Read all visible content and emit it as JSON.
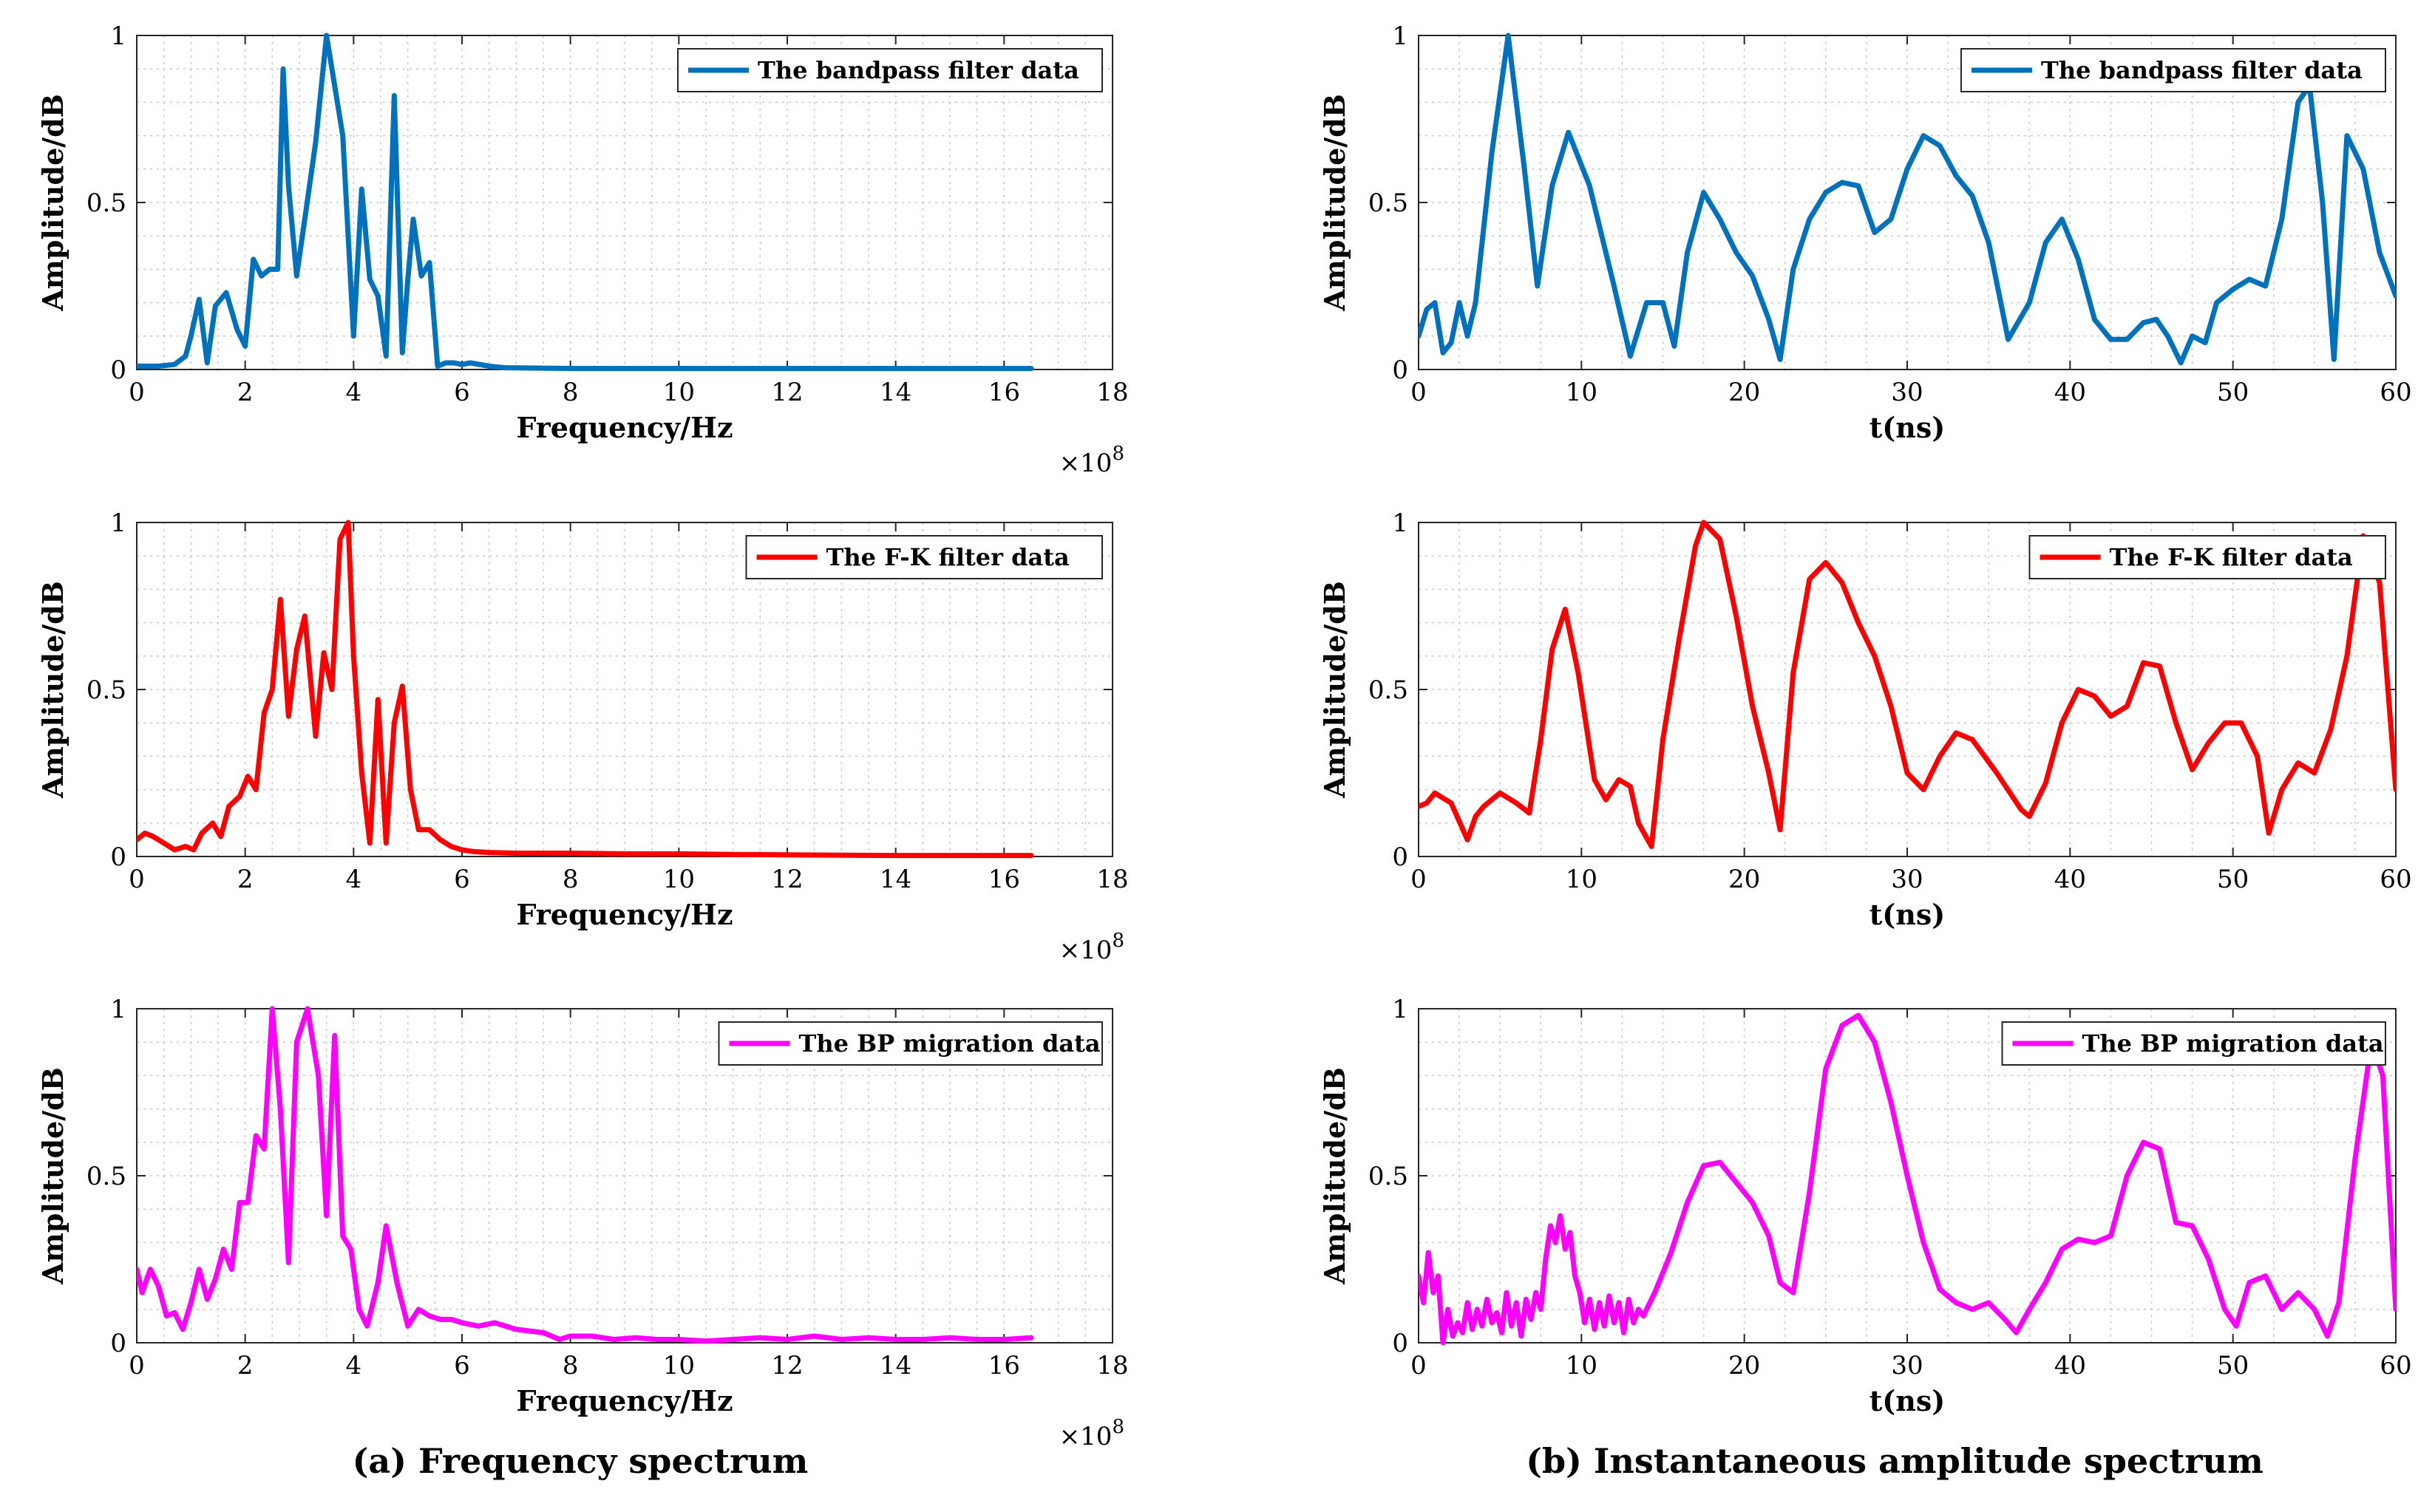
{
  "captions": {
    "left": "(a) Frequency spectrum",
    "right": "(b) Instantaneous amplitude spectrum"
  },
  "chart_data": [
    {
      "id": "freq-bandpass",
      "type": "line",
      "panel": "left-row-1",
      "xlabel": "Frequency/Hz",
      "ylabel": "Amplitude/dB",
      "x_multiplier": "×10",
      "x_exponent": "8",
      "xlim": [
        0,
        18
      ],
      "ylim": [
        0,
        1
      ],
      "xticks": [
        "0",
        "2",
        "4",
        "6",
        "8",
        "10",
        "12",
        "14",
        "16",
        "18"
      ],
      "yticks": [
        "0",
        "0.5",
        "1"
      ],
      "legend": "The bandpass filter data",
      "color": "#0072BD",
      "grid": true,
      "x": [
        0,
        0.4,
        0.7,
        0.9,
        1.0,
        1.15,
        1.3,
        1.45,
        1.65,
        1.85,
        2.0,
        2.15,
        2.3,
        2.45,
        2.6,
        2.7,
        2.8,
        2.95,
        3.1,
        3.3,
        3.5,
        3.65,
        3.8,
        4.0,
        4.15,
        4.3,
        4.45,
        4.6,
        4.75,
        4.9,
        5.0,
        5.1,
        5.25,
        5.4,
        5.55,
        5.7,
        5.85,
        6.0,
        6.15,
        6.5,
        6.8,
        7.0,
        8,
        10,
        12,
        14,
        16.5
      ],
      "y": [
        0.01,
        0.01,
        0.015,
        0.04,
        0.1,
        0.21,
        0.02,
        0.19,
        0.23,
        0.12,
        0.07,
        0.33,
        0.28,
        0.3,
        0.3,
        0.9,
        0.55,
        0.28,
        0.45,
        0.68,
        1.0,
        0.85,
        0.7,
        0.1,
        0.54,
        0.27,
        0.22,
        0.04,
        0.82,
        0.05,
        0.27,
        0.45,
        0.28,
        0.32,
        0.01,
        0.02,
        0.02,
        0.015,
        0.02,
        0.01,
        0.005,
        0.005,
        0.003,
        0.003,
        0.003,
        0.003,
        0.003
      ]
    },
    {
      "id": "freq-fk",
      "type": "line",
      "panel": "left-row-2",
      "xlabel": "Frequency/Hz",
      "ylabel": "Amplitude/dB",
      "x_multiplier": "×10",
      "x_exponent": "8",
      "xlim": [
        0,
        18
      ],
      "ylim": [
        0,
        1
      ],
      "xticks": [
        "0",
        "2",
        "4",
        "6",
        "8",
        "10",
        "12",
        "14",
        "16",
        "18"
      ],
      "yticks": [
        "0",
        "0.5",
        "1"
      ],
      "legend": "The F-K filter data",
      "color": "#FF0000",
      "grid": true,
      "x": [
        0,
        0.15,
        0.3,
        0.5,
        0.7,
        0.9,
        1.05,
        1.2,
        1.4,
        1.55,
        1.7,
        1.9,
        2.05,
        2.2,
        2.35,
        2.5,
        2.65,
        2.8,
        2.95,
        3.1,
        3.3,
        3.45,
        3.6,
        3.75,
        3.9,
        4.0,
        4.15,
        4.3,
        4.45,
        4.6,
        4.75,
        4.9,
        5.05,
        5.2,
        5.4,
        5.6,
        5.8,
        6.0,
        6.2,
        6.5,
        7,
        8,
        9,
        10,
        11,
        12,
        13,
        14,
        15,
        16.5
      ],
      "y": [
        0.05,
        0.07,
        0.06,
        0.04,
        0.02,
        0.03,
        0.02,
        0.07,
        0.1,
        0.06,
        0.15,
        0.18,
        0.24,
        0.2,
        0.43,
        0.5,
        0.77,
        0.42,
        0.62,
        0.72,
        0.36,
        0.61,
        0.5,
        0.95,
        1.0,
        0.6,
        0.25,
        0.04,
        0.47,
        0.04,
        0.4,
        0.51,
        0.2,
        0.08,
        0.08,
        0.05,
        0.03,
        0.02,
        0.015,
        0.012,
        0.01,
        0.01,
        0.008,
        0.008,
        0.006,
        0.005,
        0.004,
        0.003,
        0.003,
        0.003
      ]
    },
    {
      "id": "freq-bp",
      "type": "line",
      "panel": "left-row-3",
      "xlabel": "Frequency/Hz",
      "ylabel": "Amplitude/dB",
      "x_multiplier": "×10",
      "x_exponent": "8",
      "xlim": [
        0,
        18
      ],
      "ylim": [
        0,
        1
      ],
      "xticks": [
        "0",
        "2",
        "4",
        "6",
        "8",
        "10",
        "12",
        "14",
        "16",
        "18"
      ],
      "yticks": [
        "0",
        "0.5",
        "1"
      ],
      "legend": "The BP migration data",
      "color": "#FF00FF",
      "grid": true,
      "x": [
        0,
        0.1,
        0.25,
        0.4,
        0.55,
        0.7,
        0.85,
        1.0,
        1.15,
        1.3,
        1.45,
        1.6,
        1.75,
        1.9,
        2.05,
        2.2,
        2.35,
        2.5,
        2.65,
        2.8,
        2.95,
        3.15,
        3.35,
        3.5,
        3.65,
        3.8,
        3.95,
        4.1,
        4.25,
        4.45,
        4.6,
        4.8,
        5.0,
        5.2,
        5.4,
        5.6,
        5.8,
        6.0,
        6.3,
        6.6,
        7.0,
        7.5,
        7.8,
        8.0,
        8.4,
        8.8,
        9.2,
        9.6,
        10.0,
        10.5,
        11,
        11.5,
        12,
        12.5,
        13,
        13.5,
        14,
        14.5,
        15,
        15.5,
        16,
        16.5
      ],
      "y": [
        0.22,
        0.15,
        0.22,
        0.17,
        0.08,
        0.09,
        0.04,
        0.12,
        0.22,
        0.13,
        0.19,
        0.28,
        0.22,
        0.42,
        0.42,
        0.62,
        0.58,
        1.0,
        0.7,
        0.24,
        0.9,
        1.0,
        0.8,
        0.38,
        0.92,
        0.32,
        0.28,
        0.1,
        0.05,
        0.18,
        0.35,
        0.18,
        0.05,
        0.1,
        0.08,
        0.07,
        0.07,
        0.06,
        0.05,
        0.06,
        0.04,
        0.03,
        0.01,
        0.02,
        0.02,
        0.01,
        0.015,
        0.01,
        0.01,
        0.005,
        0.01,
        0.015,
        0.01,
        0.02,
        0.01,
        0.015,
        0.01,
        0.01,
        0.015,
        0.01,
        0.01,
        0.015
      ]
    },
    {
      "id": "time-bandpass",
      "type": "line",
      "panel": "right-row-1",
      "xlabel": "t(ns)",
      "ylabel": "Amplitude/dB",
      "xlim": [
        0,
        60
      ],
      "ylim": [
        0,
        1
      ],
      "xticks": [
        "0",
        "10",
        "20",
        "30",
        "40",
        "50",
        "60"
      ],
      "yticks": [
        "0",
        "0.5",
        "1"
      ],
      "legend": "The bandpass filter data",
      "color": "#0072BD",
      "grid": true,
      "x": [
        0,
        0.5,
        1.0,
        1.5,
        2.0,
        2.5,
        3.0,
        3.5,
        4.5,
        5.5,
        6.5,
        7.3,
        8.2,
        9.2,
        10.5,
        12,
        13,
        14,
        15,
        15.7,
        16.5,
        17.5,
        18.5,
        19.5,
        20.5,
        21.5,
        22.2,
        23,
        24,
        25,
        26,
        27,
        28,
        29,
        30,
        31,
        32,
        33,
        34,
        35,
        36.2,
        37.5,
        38.5,
        39.5,
        40.5,
        41.5,
        42.5,
        43.5,
        44.5,
        45.3,
        46,
        46.8,
        47.5,
        48.3,
        49,
        50,
        51,
        52,
        53,
        54,
        54.7,
        55.5,
        56.2,
        57,
        58,
        59,
        60
      ],
      "y": [
        0.1,
        0.18,
        0.2,
        0.05,
        0.08,
        0.2,
        0.1,
        0.2,
        0.65,
        1.0,
        0.6,
        0.25,
        0.55,
        0.71,
        0.55,
        0.25,
        0.04,
        0.2,
        0.2,
        0.07,
        0.35,
        0.53,
        0.45,
        0.35,
        0.28,
        0.15,
        0.03,
        0.3,
        0.45,
        0.53,
        0.56,
        0.55,
        0.41,
        0.45,
        0.6,
        0.7,
        0.67,
        0.58,
        0.52,
        0.38,
        0.09,
        0.2,
        0.38,
        0.45,
        0.33,
        0.15,
        0.09,
        0.09,
        0.14,
        0.15,
        0.1,
        0.02,
        0.1,
        0.08,
        0.2,
        0.24,
        0.27,
        0.25,
        0.45,
        0.8,
        0.85,
        0.5,
        0.03,
        0.7,
        0.6,
        0.35,
        0.22
      ]
    },
    {
      "id": "time-fk",
      "type": "line",
      "panel": "right-row-2",
      "xlabel": "t(ns)",
      "ylabel": "Amplitude/dB",
      "xlim": [
        0,
        60
      ],
      "ylim": [
        0,
        1
      ],
      "xticks": [
        "0",
        "10",
        "20",
        "30",
        "40",
        "50",
        "60"
      ],
      "yticks": [
        "0",
        "0.5",
        "1"
      ],
      "legend": "The F-K filter data",
      "color": "#FF0000",
      "grid": true,
      "x": [
        0,
        0.5,
        1.0,
        2.0,
        3.0,
        3.5,
        4.0,
        5.0,
        6.0,
        6.8,
        7.5,
        8.2,
        9.0,
        9.8,
        10.8,
        11.5,
        12.3,
        13.0,
        13.5,
        14.3,
        15.0,
        16.0,
        17.0,
        17.5,
        18.5,
        19.5,
        20.5,
        21.5,
        22.2,
        23.0,
        24.0,
        25.0,
        26.0,
        27.0,
        28.0,
        29.0,
        30.0,
        31.0,
        32.0,
        33.0,
        34.0,
        35.5,
        37.0,
        37.5,
        38.5,
        39.5,
        40.5,
        41.5,
        42.5,
        43.5,
        44.5,
        45.5,
        46.5,
        47.5,
        48.5,
        49.5,
        50.5,
        51.5,
        52.2,
        53.0,
        54.0,
        55.0,
        56.0,
        57.0,
        58.0,
        59.0,
        60.0
      ],
      "y": [
        0.15,
        0.16,
        0.19,
        0.16,
        0.05,
        0.12,
        0.15,
        0.19,
        0.16,
        0.13,
        0.35,
        0.62,
        0.74,
        0.55,
        0.23,
        0.17,
        0.23,
        0.21,
        0.1,
        0.03,
        0.35,
        0.65,
        0.93,
        1.0,
        0.95,
        0.72,
        0.45,
        0.25,
        0.08,
        0.55,
        0.83,
        0.88,
        0.82,
        0.7,
        0.6,
        0.45,
        0.25,
        0.2,
        0.3,
        0.37,
        0.35,
        0.25,
        0.14,
        0.12,
        0.22,
        0.4,
        0.5,
        0.48,
        0.42,
        0.45,
        0.58,
        0.57,
        0.4,
        0.26,
        0.34,
        0.4,
        0.4,
        0.3,
        0.07,
        0.2,
        0.28,
        0.25,
        0.38,
        0.6,
        0.96,
        0.82,
        0.2
      ]
    },
    {
      "id": "time-bp",
      "type": "line",
      "panel": "right-row-3",
      "xlabel": "t(ns)",
      "ylabel": "Amplitude/dB",
      "xlim": [
        0,
        60
      ],
      "ylim": [
        0,
        1
      ],
      "xticks": [
        "0",
        "10",
        "20",
        "30",
        "40",
        "50",
        "60"
      ],
      "yticks": [
        "0",
        "0.5",
        "1"
      ],
      "legend": "The BP migration data",
      "color": "#FF00FF",
      "grid": true,
      "x": [
        0,
        0.3,
        0.6,
        0.9,
        1.2,
        1.5,
        1.8,
        2.1,
        2.4,
        2.7,
        3.0,
        3.3,
        3.6,
        3.9,
        4.2,
        4.5,
        4.8,
        5.1,
        5.4,
        5.7,
        6.0,
        6.3,
        6.6,
        6.9,
        7.2,
        7.5,
        7.8,
        8.1,
        8.4,
        8.7,
        9.0,
        9.3,
        9.6,
        9.9,
        10.2,
        10.5,
        10.8,
        11.1,
        11.4,
        11.7,
        12.0,
        12.3,
        12.6,
        12.9,
        13.2,
        13.5,
        13.8,
        14.5,
        15.5,
        16.5,
        17.5,
        18.5,
        19.5,
        20.5,
        21.5,
        22.2,
        23,
        24,
        25,
        26,
        27,
        28,
        29,
        30,
        31,
        32,
        33,
        34,
        35,
        36,
        36.7,
        37.5,
        38.5,
        39.5,
        40.5,
        41.5,
        42.5,
        43.5,
        44.5,
        45.5,
        46.5,
        47.5,
        48.5,
        49.5,
        50.2,
        51,
        52,
        53,
        54,
        55,
        55.8,
        56.5,
        57.5,
        58.5,
        59.2,
        60
      ],
      "y": [
        0.2,
        0.12,
        0.27,
        0.15,
        0.2,
        0.0,
        0.1,
        0.02,
        0.06,
        0.03,
        0.12,
        0.04,
        0.1,
        0.05,
        0.13,
        0.06,
        0.09,
        0.03,
        0.15,
        0.05,
        0.12,
        0.02,
        0.13,
        0.07,
        0.15,
        0.1,
        0.25,
        0.35,
        0.3,
        0.38,
        0.28,
        0.33,
        0.2,
        0.15,
        0.06,
        0.13,
        0.04,
        0.12,
        0.05,
        0.14,
        0.06,
        0.12,
        0.03,
        0.13,
        0.06,
        0.1,
        0.08,
        0.15,
        0.27,
        0.42,
        0.53,
        0.54,
        0.48,
        0.42,
        0.32,
        0.18,
        0.15,
        0.45,
        0.82,
        0.95,
        0.98,
        0.9,
        0.72,
        0.5,
        0.3,
        0.16,
        0.12,
        0.1,
        0.12,
        0.07,
        0.03,
        0.1,
        0.18,
        0.28,
        0.31,
        0.3,
        0.32,
        0.5,
        0.6,
        0.58,
        0.36,
        0.35,
        0.25,
        0.1,
        0.05,
        0.18,
        0.2,
        0.1,
        0.15,
        0.1,
        0.02,
        0.12,
        0.55,
        0.9,
        0.8,
        0.1
      ]
    }
  ]
}
